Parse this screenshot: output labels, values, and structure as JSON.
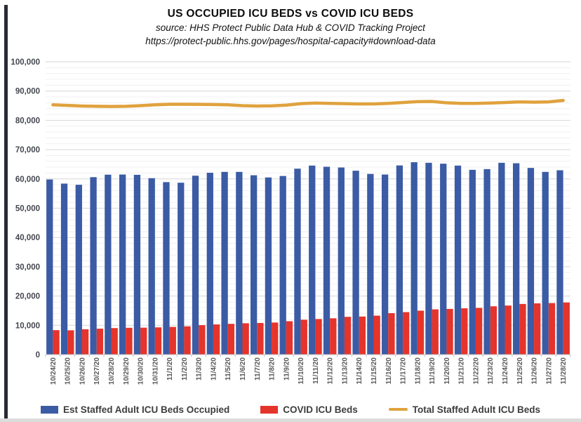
{
  "header": {
    "title": "US OCCUPIED ICU BEDS vs COVID ICU BEDS",
    "source_line": "source: HHS Protect Public Data Hub & COVID Tracking Project",
    "url_line": "https://protect-public.hhs.gov/pages/hospital-capacity#download-data"
  },
  "chart_data": {
    "type": "combo",
    "categories": [
      "10/24/20",
      "10/25/20",
      "10/26/20",
      "10/27/20",
      "10/28/20",
      "10/29/20",
      "10/30/20",
      "10/31/20",
      "11/1/20",
      "11/2/20",
      "11/3/20",
      "11/4/20",
      "11/5/20",
      "11/6/20",
      "11/7/20",
      "11/8/20",
      "11/9/20",
      "11/10/20",
      "11/11/20",
      "11/12/20",
      "11/13/20",
      "11/14/20",
      "11/15/20",
      "11/16/20",
      "11/17/20",
      "11/18/20",
      "11/19/20",
      "11/20/20",
      "11/21/20",
      "11/22/20",
      "11/23/20",
      "11/24/20",
      "11/25/20",
      "11/26/20",
      "11/27/20",
      "11/28/20"
    ],
    "series": [
      {
        "name": "Est Staffed Adult ICU Beds Occupied",
        "type": "bar",
        "color": "#3B5BA5",
        "values": [
          59800,
          58400,
          58000,
          60600,
          61450,
          61500,
          61400,
          60250,
          58900,
          58700,
          61100,
          62100,
          62400,
          62400,
          61250,
          60500,
          61000,
          63500,
          64550,
          64150,
          63900,
          62800,
          61700,
          61500,
          64600,
          65700,
          65500,
          65200,
          64550,
          63100,
          63350,
          65500,
          65350,
          63750,
          62400,
          62950
        ]
      },
      {
        "name": "COVID ICU Beds",
        "type": "bar",
        "color": "#E5342B",
        "values": [
          8350,
          8300,
          8650,
          8850,
          9050,
          9150,
          9200,
          9300,
          9450,
          9650,
          10050,
          10300,
          10500,
          10700,
          10800,
          10950,
          11400,
          11900,
          12150,
          12400,
          12900,
          13000,
          13300,
          14150,
          14500,
          15000,
          15450,
          15600,
          15800,
          15950,
          16500,
          16750,
          17300,
          17500,
          17600,
          17800
        ]
      },
      {
        "name": "Total Staffed Adult ICU Beds",
        "type": "line",
        "color": "#E0A23E",
        "values": [
          85300,
          85100,
          84900,
          84800,
          84750,
          84800,
          85000,
          85300,
          85500,
          85500,
          85450,
          85400,
          85300,
          85000,
          84900,
          84950,
          85200,
          85700,
          85900,
          85800,
          85700,
          85600,
          85600,
          85800,
          86100,
          86400,
          86450,
          86000,
          85800,
          85800,
          85900,
          86100,
          86300,
          86200,
          86300,
          86800
        ]
      }
    ],
    "ylim": [
      0,
      100000
    ],
    "y_major_step": 10000,
    "y_minor_step": 2000,
    "y_tick_labels": [
      "0",
      "10,000",
      "20,000",
      "30,000",
      "40,000",
      "50,000",
      "60,000",
      "70,000",
      "80,000",
      "90,000",
      "100,000"
    ],
    "grid": "major+minor horizontal",
    "legend_position": "bottom",
    "x_tick_rotation": -90
  },
  "colors": {
    "grid_major": "#d6d6d6",
    "grid_minor": "#f0f0f0",
    "axis_line": "#c3c3c3",
    "y_label": "#44474f",
    "x_label": "#595959"
  }
}
